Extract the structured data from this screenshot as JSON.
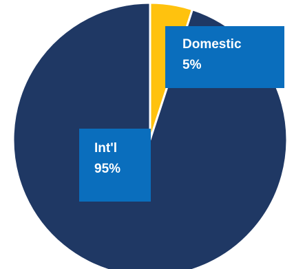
{
  "chart_data": {
    "type": "pie",
    "title": "",
    "slices": [
      {
        "name": "Domestic",
        "value": 5,
        "label_text": "Domestic",
        "percent_text": "5%",
        "color": "#FFC20E"
      },
      {
        "name": "Int'l",
        "value": 95,
        "label_text": "Int'l",
        "percent_text": "95%",
        "color": "#1F3864"
      }
    ],
    "label_box_color": "#0A6EBD",
    "slice_border_color": "#ffffff",
    "start_angle_deg": 0,
    "direction": "clockwise"
  }
}
